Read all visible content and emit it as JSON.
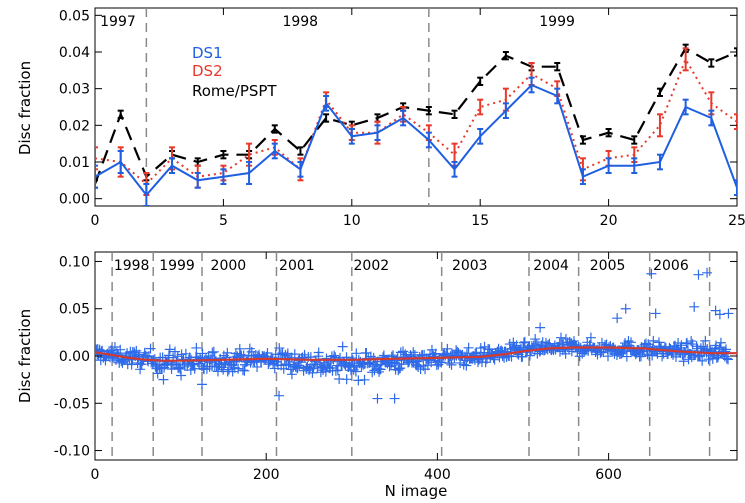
{
  "chart_data": [
    {
      "type": "line",
      "ylabel": "Disc fraction",
      "xlim": [
        0,
        25
      ],
      "ylim": [
        -0.002,
        0.052
      ],
      "xticks": [
        0,
        5,
        10,
        15,
        20,
        25
      ],
      "xtick_labels": [
        "0",
        "5",
        "10",
        "15",
        "20",
        "25"
      ],
      "yticks": [
        0.0,
        0.01,
        0.02,
        0.03,
        0.04,
        0.05
      ],
      "ytick_labels": [
        "0.00",
        "0.01",
        "0.02",
        "0.03",
        "0.04",
        "0.05"
      ],
      "year_dividers": [
        2,
        13
      ],
      "year_labels": [
        {
          "text": "1997",
          "x": 0.2
        },
        {
          "text": "1998",
          "x": 7.3
        },
        {
          "text": "1999",
          "x": 17.3
        }
      ],
      "legend_position": "top-left",
      "series": [
        {
          "name": "DS1",
          "color": "#1f5fe0",
          "style": "solid",
          "x": [
            0,
            1,
            2,
            3,
            4,
            5,
            6,
            7,
            8,
            9,
            10,
            11,
            12,
            13,
            14,
            15,
            16,
            17,
            18,
            19,
            20,
            21,
            22,
            23,
            24,
            25
          ],
          "values": [
            0.006,
            0.01,
            0.001,
            0.009,
            0.005,
            0.006,
            0.007,
            0.013,
            0.008,
            0.026,
            0.017,
            0.018,
            0.022,
            0.016,
            0.008,
            0.017,
            0.024,
            0.031,
            0.028,
            0.006,
            0.009,
            0.009,
            0.01,
            0.025,
            0.022,
            0.003
          ],
          "errors": [
            0.003,
            0.003,
            0.003,
            0.002,
            0.002,
            0.002,
            0.003,
            0.002,
            0.002,
            0.002,
            0.002,
            0.002,
            0.002,
            0.002,
            0.002,
            0.002,
            0.002,
            0.002,
            0.002,
            0.002,
            0.002,
            0.002,
            0.002,
            0.002,
            0.002,
            0.002
          ]
        },
        {
          "name": "DS2",
          "color": "#e8382a",
          "style": "dotted",
          "x": [
            0,
            1,
            2,
            3,
            4,
            5,
            6,
            7,
            8,
            9,
            10,
            11,
            12,
            13,
            14,
            15,
            16,
            17,
            18,
            19,
            20,
            21,
            22,
            23,
            24,
            25
          ],
          "values": [
            0.011,
            0.01,
            0.004,
            0.011,
            0.006,
            0.007,
            0.012,
            0.014,
            0.008,
            0.027,
            0.018,
            0.018,
            0.023,
            0.018,
            0.012,
            0.025,
            0.027,
            0.034,
            0.03,
            0.008,
            0.011,
            0.012,
            0.02,
            0.038,
            0.026,
            0.021
          ],
          "errors": [
            0.003,
            0.004,
            0.003,
            0.003,
            0.003,
            0.002,
            0.003,
            0.002,
            0.003,
            0.002,
            0.002,
            0.003,
            0.002,
            0.002,
            0.003,
            0.002,
            0.003,
            0.003,
            0.002,
            0.003,
            0.002,
            0.002,
            0.003,
            0.003,
            0.003,
            0.002
          ]
        },
        {
          "name": "Rome/PSPT",
          "color": "#000000",
          "style": "dashed",
          "x": [
            0,
            1,
            2,
            3,
            4,
            5,
            6,
            7,
            8,
            9,
            10,
            11,
            12,
            13,
            14,
            15,
            16,
            17,
            18,
            19,
            20,
            21,
            22,
            23,
            24,
            25
          ],
          "values": [
            0.004,
            0.023,
            0.006,
            0.012,
            0.01,
            0.012,
            0.012,
            0.019,
            0.013,
            0.022,
            0.02,
            0.022,
            0.025,
            0.024,
            0.023,
            0.032,
            0.039,
            0.036,
            0.036,
            0.016,
            0.018,
            0.016,
            0.029,
            0.041,
            0.037,
            0.04
          ],
          "errors": [
            0.001,
            0.001,
            0.001,
            0.001,
            0.001,
            0.001,
            0.001,
            0.001,
            0.001,
            0.001,
            0.001,
            0.001,
            0.001,
            0.001,
            0.001,
            0.001,
            0.001,
            0.001,
            0.001,
            0.001,
            0.001,
            0.001,
            0.001,
            0.001,
            0.001,
            0.001
          ]
        }
      ]
    },
    {
      "type": "scatter",
      "xlabel": "N image",
      "ylabel": "Disc fraction",
      "xlim": [
        0,
        750
      ],
      "ylim": [
        -0.11,
        0.11
      ],
      "xticks": [
        0,
        200,
        400,
        600
      ],
      "xtick_labels": [
        "0",
        "200",
        "400",
        "600"
      ],
      "yticks": [
        -0.1,
        -0.05,
        0.0,
        0.05,
        0.1
      ],
      "ytick_labels": [
        "-0.10",
        "-0.05",
        "0.00",
        "0.05",
        "0.10"
      ],
      "year_dividers": [
        20,
        68,
        125,
        212,
        300,
        405,
        507,
        565,
        648,
        718
      ],
      "year_labels": [
        {
          "text": "1998",
          "x": 22
        },
        {
          "text": "1999",
          "x": 75
        },
        {
          "text": "2000",
          "x": 135
        },
        {
          "text": "2001",
          "x": 215
        },
        {
          "text": "2002",
          "x": 302
        },
        {
          "text": "2003",
          "x": 417
        },
        {
          "text": "2004",
          "x": 512
        },
        {
          "text": "2005",
          "x": 578
        },
        {
          "text": "2006",
          "x": 652
        }
      ],
      "scatter_color": "#2f6be8",
      "smooth_color": "#d23a2f",
      "smooth_curve": {
        "x": [
          0,
          20,
          40,
          60,
          80,
          100,
          150,
          200,
          250,
          300,
          350,
          400,
          450,
          480,
          500,
          530,
          560,
          600,
          640,
          680,
          720,
          750
        ],
        "values": [
          0.004,
          0.001,
          -0.002,
          -0.004,
          -0.005,
          -0.005,
          -0.004,
          -0.003,
          -0.004,
          -0.004,
          -0.003,
          -0.002,
          -0.001,
          0.002,
          0.005,
          0.008,
          0.009,
          0.009,
          0.008,
          0.005,
          0.003,
          0.003
        ]
      },
      "scatter_trend": {
        "x": [
          0,
          40,
          80,
          120,
          160,
          200,
          240,
          280,
          320,
          360,
          400,
          440,
          480,
          520,
          560,
          600,
          640,
          680,
          720,
          750
        ],
        "values": [
          0.003,
          -0.002,
          -0.006,
          -0.008,
          -0.004,
          -0.003,
          -0.006,
          -0.01,
          -0.008,
          -0.005,
          -0.002,
          -0.001,
          0.003,
          0.008,
          0.009,
          0.008,
          0.007,
          0.005,
          0.004,
          0.003
        ],
        "spread": [
          0.007,
          0.008,
          0.011,
          0.013,
          0.01,
          0.01,
          0.012,
          0.014,
          0.012,
          0.01,
          0.009,
          0.008,
          0.008,
          0.008,
          0.008,
          0.008,
          0.008,
          0.008,
          0.009,
          0.008
        ]
      },
      "outliers": [
        {
          "x": 610,
          "y": 0.04
        },
        {
          "x": 620,
          "y": 0.05
        },
        {
          "x": 650,
          "y": 0.087
        },
        {
          "x": 655,
          "y": 0.045
        },
        {
          "x": 700,
          "y": 0.052
        },
        {
          "x": 705,
          "y": 0.086
        },
        {
          "x": 715,
          "y": 0.088
        },
        {
          "x": 725,
          "y": 0.048
        },
        {
          "x": 730,
          "y": 0.044
        },
        {
          "x": 740,
          "y": 0.045
        },
        {
          "x": 520,
          "y": 0.03
        },
        {
          "x": 330,
          "y": -0.045
        },
        {
          "x": 350,
          "y": -0.045
        },
        {
          "x": 215,
          "y": -0.042
        },
        {
          "x": 125,
          "y": -0.03
        },
        {
          "x": 80,
          "y": -0.025
        }
      ]
    }
  ]
}
